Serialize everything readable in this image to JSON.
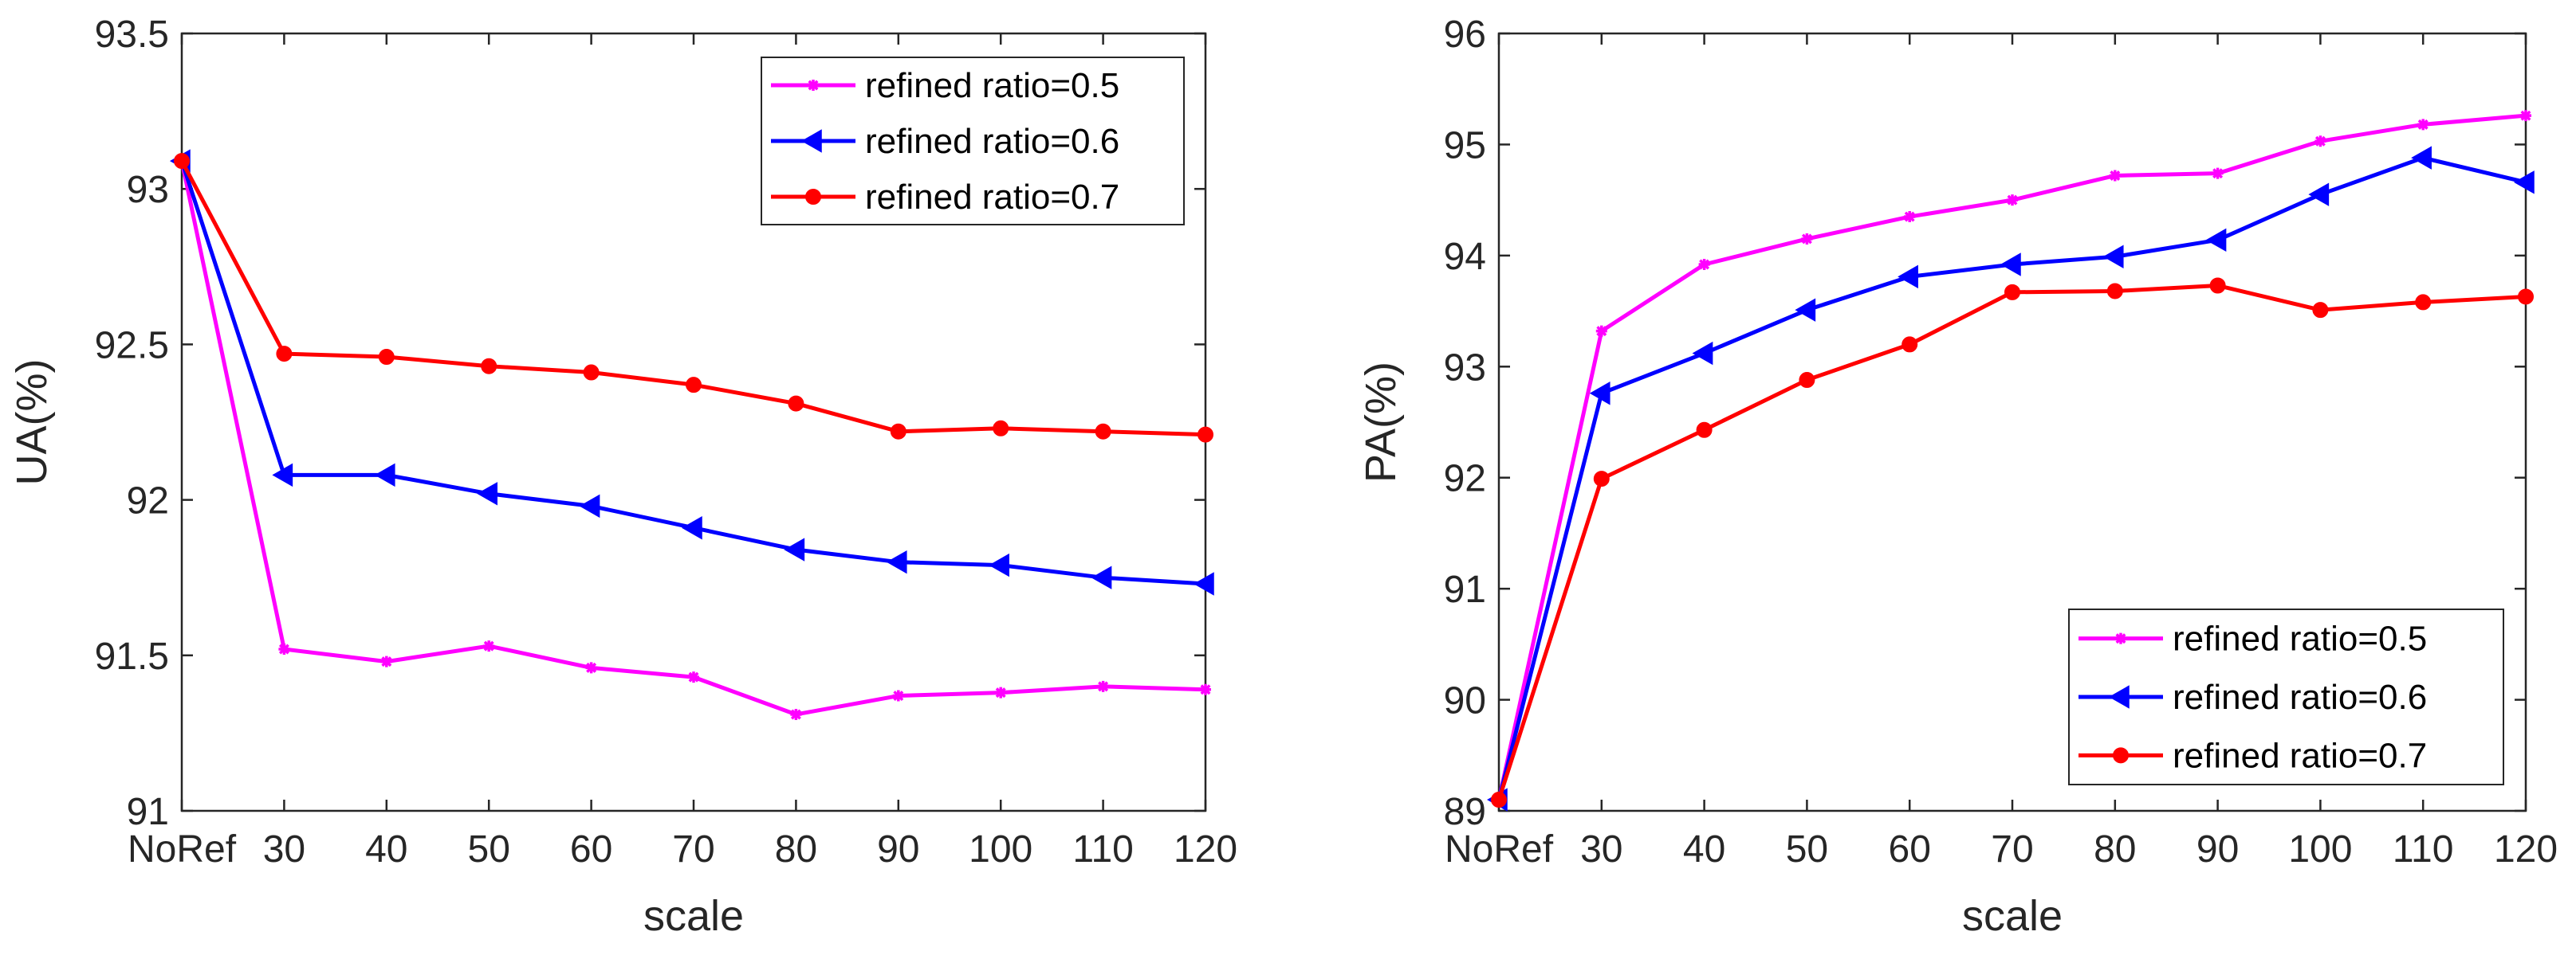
{
  "chart_data": [
    {
      "type": "line",
      "title": "",
      "xlabel": "scale",
      "ylabel": "UA(%)",
      "categories": [
        "NoRef",
        "30",
        "40",
        "50",
        "60",
        "70",
        "80",
        "90",
        "100",
        "110",
        "120"
      ],
      "ylim": [
        91,
        93.5
      ],
      "yticks": [
        91,
        91.5,
        92,
        92.5,
        93,
        93.5
      ],
      "ytick_labels": [
        "91",
        "91.5",
        "92",
        "92.5",
        "93",
        "93.5"
      ],
      "legend_position": "top-right",
      "series": [
        {
          "name": "refined ratio=0.5",
          "color": "#ff00ff",
          "marker": "star",
          "values": [
            93.09,
            91.52,
            91.48,
            91.53,
            91.46,
            91.43,
            91.31,
            91.37,
            91.38,
            91.4,
            91.39
          ]
        },
        {
          "name": "refined ratio=0.6",
          "color": "#0000ff",
          "marker": "triangle-left",
          "values": [
            93.09,
            92.08,
            92.08,
            92.02,
            91.98,
            91.91,
            91.84,
            91.8,
            91.79,
            91.75,
            91.73
          ]
        },
        {
          "name": "refined ratio=0.7",
          "color": "#ff0000",
          "marker": "circle",
          "values": [
            93.09,
            92.47,
            92.46,
            92.43,
            92.41,
            92.37,
            92.31,
            92.22,
            92.23,
            92.22,
            92.21
          ]
        }
      ]
    },
    {
      "type": "line",
      "title": "",
      "xlabel": "scale",
      "ylabel": "PA(%)",
      "categories": [
        "NoRef",
        "30",
        "40",
        "50",
        "60",
        "70",
        "80",
        "90",
        "100",
        "110",
        "120"
      ],
      "ylim": [
        89,
        96
      ],
      "yticks": [
        89,
        90,
        91,
        92,
        93,
        94,
        95,
        96
      ],
      "ytick_labels": [
        "89",
        "90",
        "91",
        "92",
        "93",
        "94",
        "95",
        "96"
      ],
      "legend_position": "bottom-right",
      "series": [
        {
          "name": "refined ratio=0.5",
          "color": "#ff00ff",
          "marker": "star",
          "values": [
            89.1,
            93.32,
            93.92,
            94.15,
            94.35,
            94.5,
            94.72,
            94.74,
            95.03,
            95.18,
            95.26
          ]
        },
        {
          "name": "refined ratio=0.6",
          "color": "#0000ff",
          "marker": "triangle-left",
          "values": [
            89.1,
            92.76,
            93.12,
            93.51,
            93.81,
            93.92,
            93.99,
            94.14,
            94.55,
            94.88,
            94.66
          ]
        },
        {
          "name": "refined ratio=0.7",
          "color": "#ff0000",
          "marker": "circle",
          "values": [
            89.1,
            91.99,
            92.43,
            92.88,
            93.2,
            93.67,
            93.68,
            93.73,
            93.51,
            93.58,
            93.63
          ]
        }
      ]
    }
  ]
}
